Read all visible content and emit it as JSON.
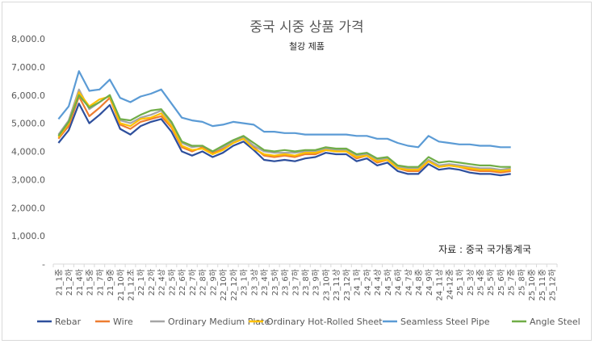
{
  "chart_data": {
    "type": "line",
    "title": "중국 시중 상품 가격",
    "subtitle": "철강 제품",
    "source": "자료 : 중국 국가통계국",
    "xlabel": "",
    "ylabel": "",
    "ylim": [
      0,
      8000
    ],
    "yticks": [
      0,
      1000,
      2000,
      3000,
      4000,
      5000,
      6000,
      7000,
      8000
    ],
    "ytick_labels": [
      "-",
      "1,000.0",
      "2,000.0",
      "3,000.0",
      "4,000.0",
      "5,000.0",
      "6,000.0",
      "7,000.0",
      "8,000.0"
    ],
    "categories": [
      "21_1중",
      "21_2하",
      "21_4하",
      "21_5중",
      "21_7하",
      "21_9중",
      "21_10하",
      "21_12초",
      "22_1하",
      "22_2하",
      "22_4상",
      "22_5하",
      "22_6하",
      "22_7하",
      "22_8하",
      "22_9하",
      "22_10하",
      "22_12하",
      "23_1하",
      "23_3상",
      "23_4하",
      "23_5하",
      "23_6하",
      "23_7하",
      "23_8하",
      "23_9하",
      "23_10하",
      "23_11상",
      "23_12하",
      "24_1하",
      "24_2하",
      "24_4상",
      "24_5하",
      "24_6하",
      "24_7상",
      "24_8중",
      "24_9하",
      "24_11상",
      "24-12중",
      "25_1하",
      "25_3상",
      "25_4중",
      "25_5하",
      "25_6하",
      "25_7중",
      "25_8하",
      "25_10중",
      "25_11중",
      "25_12하"
    ],
    "legend_position": "bottom",
    "grid": false,
    "series": [
      {
        "name": "Rebar",
        "color": "#2e4f9c",
        "values": [
          4300,
          4750,
          5700,
          5000,
          5300,
          5650,
          4800,
          4600,
          4900,
          5050,
          5150,
          4700,
          4000,
          3850,
          4000,
          3800,
          3950,
          4200,
          4350,
          4050,
          3700,
          3650,
          3700,
          3650,
          3750,
          3800,
          3950,
          3900,
          3900,
          3650,
          3750,
          3500,
          3600,
          3300,
          3200,
          3200,
          3550,
          3350,
          3400,
          3350,
          3250,
          3200,
          3200,
          3150,
          3200,
          null,
          null,
          null,
          null
        ]
      },
      {
        "name": "Wire",
        "color": "#ed7d31",
        "values": [
          4450,
          4900,
          5950,
          5250,
          5550,
          5900,
          4950,
          4800,
          5050,
          5150,
          5250,
          4850,
          4150,
          4000,
          4150,
          3950,
          4100,
          4300,
          4450,
          4150,
          3850,
          3800,
          3850,
          3800,
          3900,
          3900,
          4050,
          4000,
          4000,
          3750,
          3850,
          3600,
          3700,
          3400,
          3300,
          3300,
          3650,
          3450,
          3500,
          3450,
          3350,
          3300,
          3300,
          3250,
          3300,
          null,
          null,
          null,
          null
        ]
      },
      {
        "name": "Ordinary Medium Plate",
        "color": "#a5a5a5",
        "values": [
          4600,
          5100,
          6200,
          5500,
          5750,
          6000,
          5100,
          5000,
          5200,
          5300,
          5450,
          5000,
          4300,
          4150,
          4200,
          4000,
          4150,
          4350,
          4500,
          4200,
          4000,
          3950,
          3950,
          3950,
          4000,
          4000,
          4100,
          4050,
          4050,
          3850,
          3900,
          3700,
          3750,
          3450,
          3400,
          3400,
          3700,
          3500,
          3550,
          3500,
          3450,
          3400,
          3400,
          3350,
          3400,
          null,
          null,
          null,
          null
        ]
      },
      {
        "name": "Ordinary Hot-Rolled Sheet",
        "color": "#ffc000",
        "values": [
          4500,
          5000,
          6100,
          5600,
          5850,
          5950,
          5000,
          4900,
          5150,
          5200,
          5350,
          4900,
          4200,
          4050,
          4100,
          3900,
          4050,
          4300,
          4450,
          4100,
          3900,
          3850,
          3900,
          3850,
          3950,
          3950,
          4050,
          4000,
          4000,
          3800,
          3850,
          3650,
          3700,
          3400,
          3350,
          3350,
          3650,
          3450,
          3500,
          3450,
          3400,
          3350,
          3350,
          3300,
          3350,
          null,
          null,
          null,
          null
        ]
      },
      {
        "name": "Seamless Steel Pipe",
        "color": "#5b9bd5",
        "values": [
          5150,
          5600,
          6850,
          6150,
          6200,
          6550,
          5900,
          5750,
          5950,
          6050,
          6200,
          5700,
          5200,
          5100,
          5050,
          4900,
          4950,
          5050,
          5000,
          4950,
          4700,
          4700,
          4650,
          4650,
          4600,
          4600,
          4600,
          4600,
          4600,
          4550,
          4550,
          4450,
          4450,
          4300,
          4200,
          4150,
          4550,
          4350,
          4300,
          4250,
          4250,
          4200,
          4200,
          4150,
          4150,
          null,
          null,
          null,
          null
        ]
      },
      {
        "name": "Angle Steel",
        "color": "#70ad47",
        "values": [
          4550,
          5050,
          6000,
          5550,
          5750,
          6000,
          5150,
          5100,
          5300,
          5450,
          5500,
          5050,
          4350,
          4200,
          4200,
          4000,
          4200,
          4400,
          4550,
          4300,
          4050,
          4000,
          4050,
          4000,
          4050,
          4050,
          4150,
          4100,
          4100,
          3900,
          3950,
          3750,
          3800,
          3500,
          3450,
          3450,
          3800,
          3600,
          3650,
          3600,
          3550,
          3500,
          3500,
          3450,
          3450,
          null,
          null,
          null,
          null
        ]
      }
    ]
  }
}
